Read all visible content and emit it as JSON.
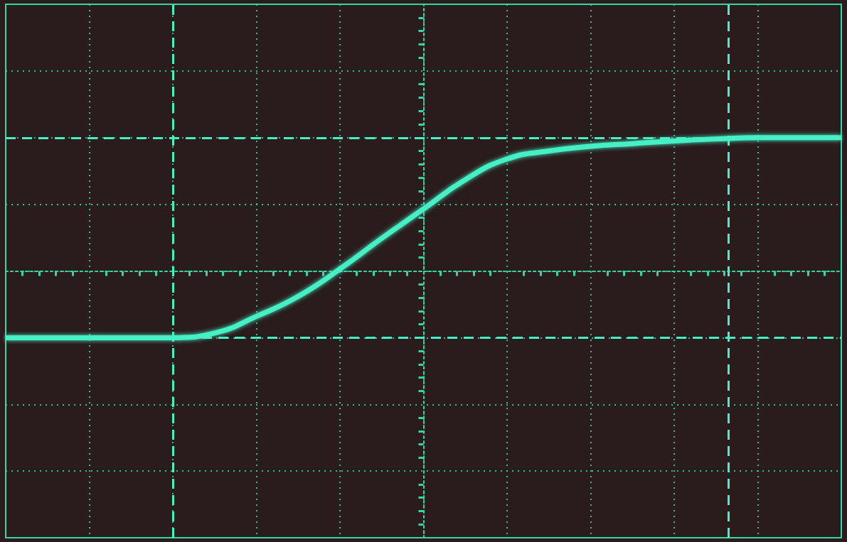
{
  "chart_data": {
    "type": "line",
    "x": [
      -5,
      -4,
      -3,
      -2.5,
      -2,
      -1.5,
      -1,
      -0.5,
      0,
      0.5,
      1,
      1.5,
      2,
      2.5,
      3,
      3.5,
      4,
      4.5,
      5
    ],
    "values": [
      -1.0,
      -1.0,
      -1.0,
      -0.93,
      -0.68,
      -0.38,
      0.03,
      0.49,
      0.93,
      1.37,
      1.68,
      1.8,
      1.87,
      1.91,
      1.95,
      1.98,
      2.0,
      2.0,
      2.0
    ],
    "xlim": [
      -5,
      5
    ],
    "ylim": [
      -4,
      4
    ],
    "xticks": [
      -5,
      -4,
      -3,
      -2,
      -1,
      0,
      1,
      2,
      3,
      4,
      5
    ],
    "yticks": [
      -4,
      -3,
      -2,
      -1,
      0,
      1,
      2,
      3,
      4
    ],
    "grid": true,
    "tick_labels": false,
    "color": "#45f0c4",
    "marker": "none",
    "line_style": "solid",
    "cursors": {
      "x": [
        -3,
        3.65
      ],
      "y": [
        -1,
        2
      ]
    }
  }
}
